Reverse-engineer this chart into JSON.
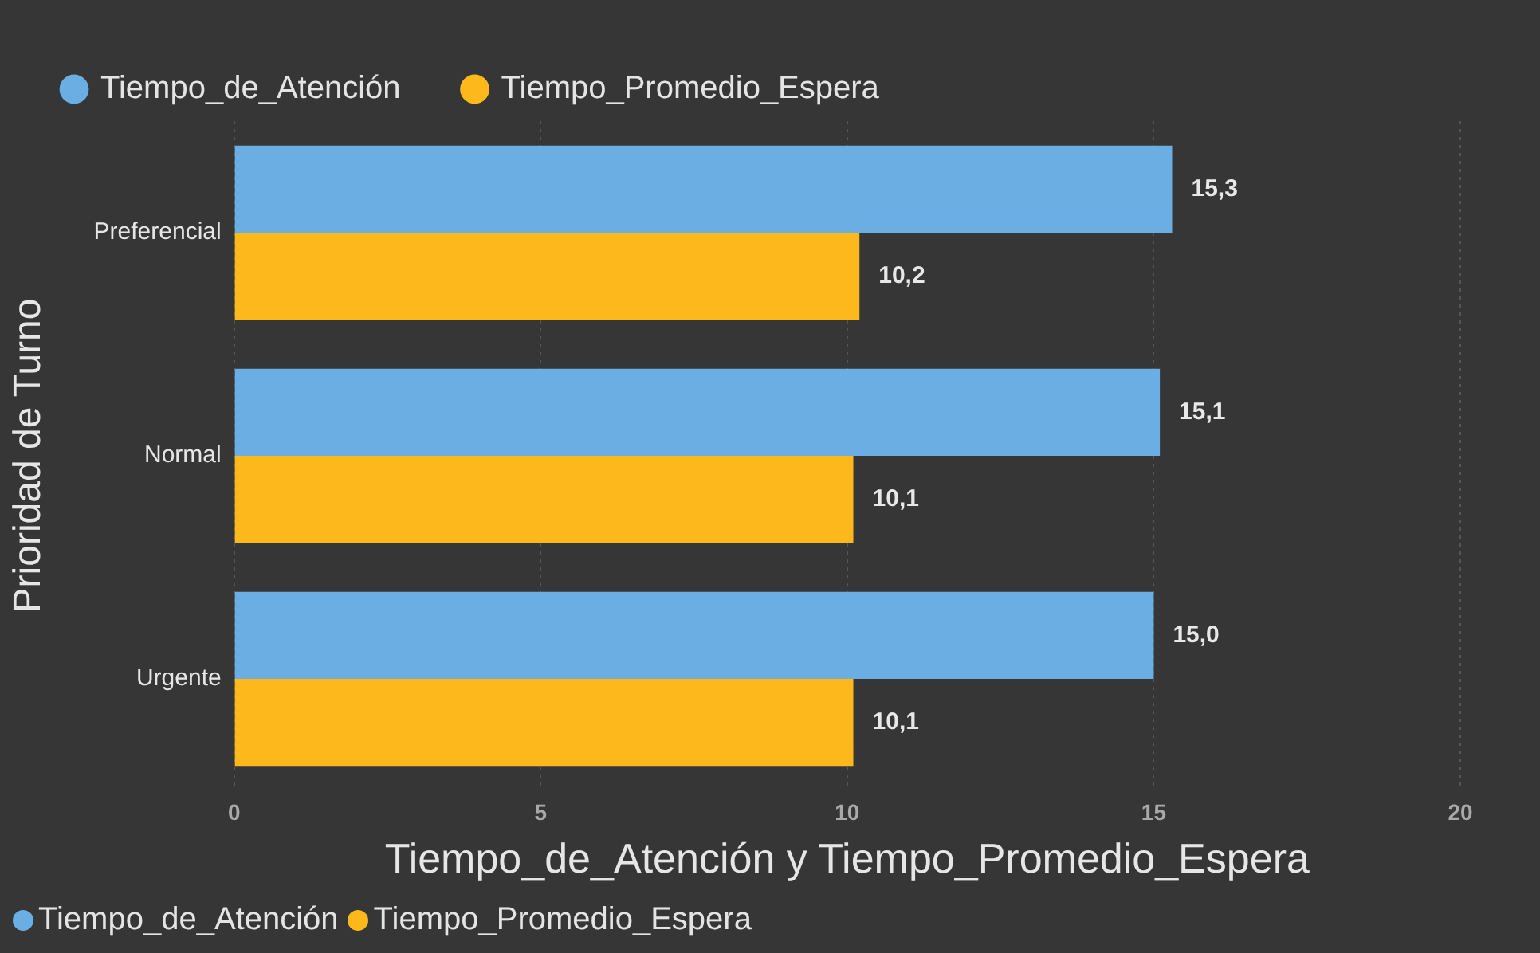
{
  "chart_data": {
    "type": "bar",
    "orientation": "horizontal",
    "xlabel": "Tiempo_de_Atención y Tiempo_Promedio_Espera",
    "ylabel": "Prioridad de Turno",
    "categories": [
      "Preferencial",
      "Normal",
      "Urgente"
    ],
    "series": [
      {
        "name": "Tiempo_de_Atención",
        "color": "#6aaee3",
        "values": [
          15.3,
          15.1,
          15.0
        ],
        "value_labels": [
          "15,3",
          "15,1",
          "15,0"
        ]
      },
      {
        "name": "Tiempo_Promedio_Espera",
        "color": "#fdb81c",
        "values": [
          10.2,
          10.1,
          10.1
        ],
        "value_labels": [
          "10,2",
          "10,1",
          "10,1"
        ]
      }
    ],
    "xlim": [
      0,
      20
    ],
    "xticks": [
      0,
      5,
      10,
      15,
      20
    ],
    "grid": "x",
    "legend": "top left"
  }
}
